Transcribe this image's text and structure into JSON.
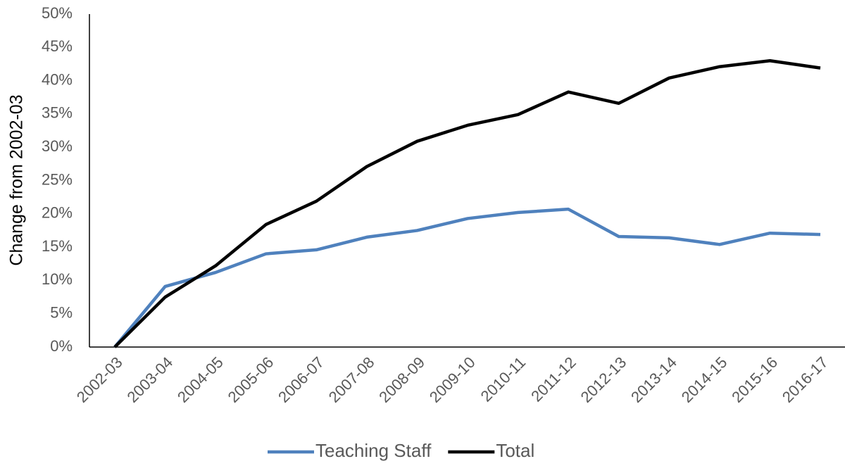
{
  "chart_data": {
    "type": "line",
    "y_label": "Change from 2002-03",
    "categories": [
      "2002-03",
      "2003-04",
      "2004-05",
      "2005-06",
      "2006-07",
      "2007-08",
      "2008-09",
      "2009-10",
      "2010-11",
      "2011-12",
      "2012-13",
      "2013-14",
      "2014-15",
      "2015-16",
      "2016-17"
    ],
    "series": [
      {
        "name": "Teaching Staff",
        "color": "#4f81bd",
        "values": [
          0,
          9.1,
          11.2,
          14.0,
          14.6,
          16.5,
          17.5,
          19.3,
          20.2,
          20.7,
          16.6,
          16.4,
          15.4,
          17.1,
          16.9
        ]
      },
      {
        "name": "Total",
        "color": "#000000",
        "values": [
          0,
          7.5,
          12.2,
          18.4,
          21.9,
          27.1,
          30.9,
          33.3,
          34.9,
          38.3,
          36.6,
          40.4,
          42.1,
          43.0,
          41.9
        ]
      }
    ],
    "ylim": [
      0,
      50
    ],
    "yticks": [
      {
        "value": 0,
        "label": "0%"
      },
      {
        "value": 5,
        "label": "5%"
      },
      {
        "value": 10,
        "label": "10%"
      },
      {
        "value": 15,
        "label": "15%"
      },
      {
        "value": 20,
        "label": "20%"
      },
      {
        "value": 25,
        "label": "25%"
      },
      {
        "value": 30,
        "label": "30%"
      },
      {
        "value": 35,
        "label": "35%"
      },
      {
        "value": 40,
        "label": "40%"
      },
      {
        "value": 45,
        "label": "45%"
      },
      {
        "value": 50,
        "label": "50%"
      }
    ],
    "grid": false,
    "legend": "bottom"
  }
}
